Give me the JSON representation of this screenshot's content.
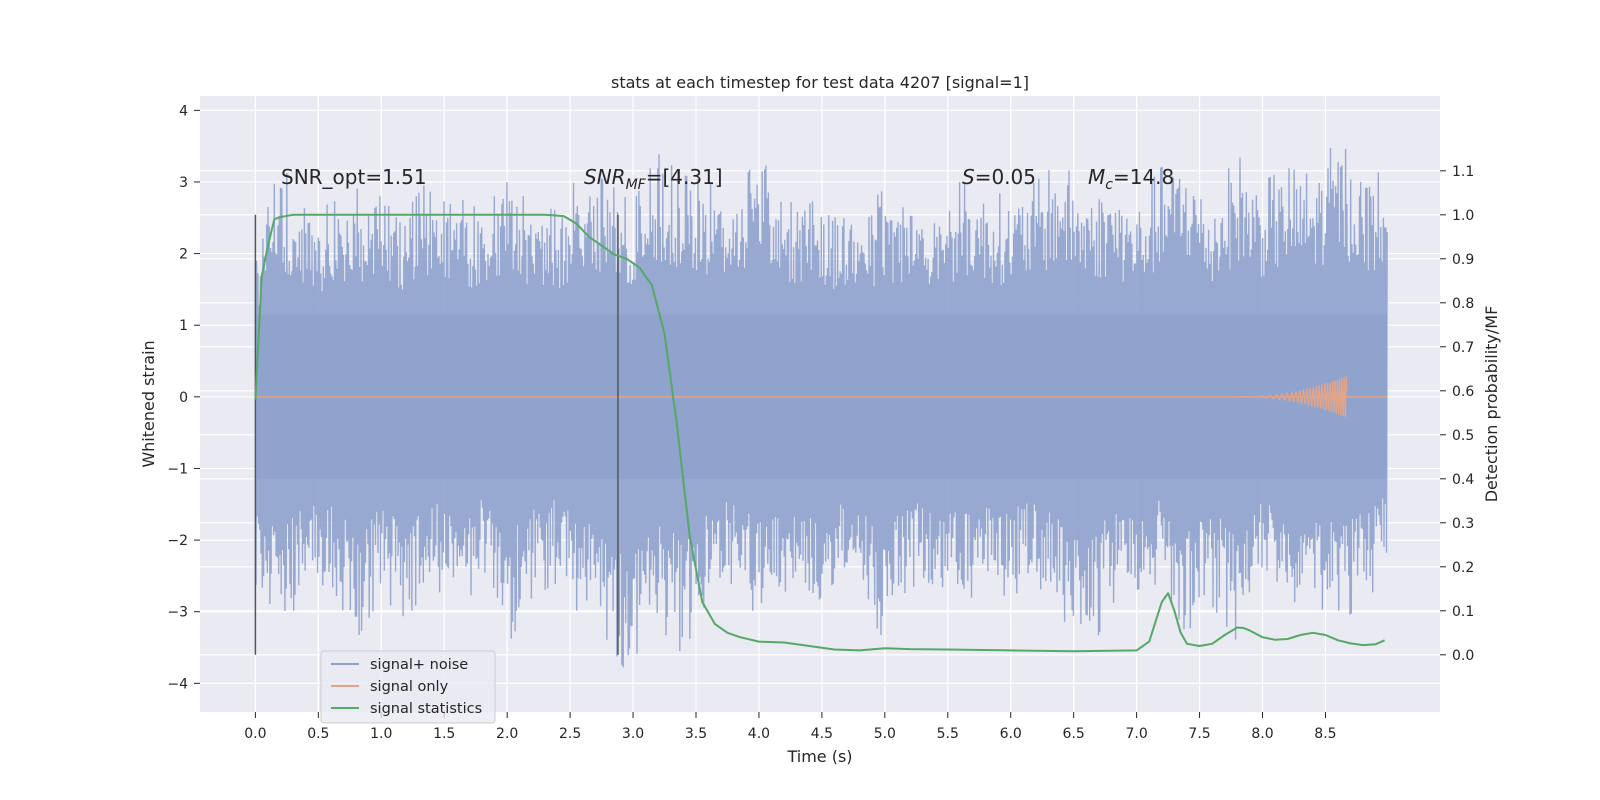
{
  "chart_data": {
    "type": "line",
    "title": "stats at each timestep for test data 4207 [signal=1]",
    "xlabel": "Time (s)",
    "ylabel": "Whitened strain",
    "ylabel_right": "Detection probability/MF",
    "xlim": [
      -0.44,
      9.41
    ],
    "ylim": [
      -4.4,
      4.2
    ],
    "ylim_right": [
      -0.13,
      1.27
    ],
    "xticks": [
      "0.0",
      "0.5",
      "1.0",
      "1.5",
      "2.0",
      "2.5",
      "3.0",
      "3.5",
      "4.0",
      "4.5",
      "5.0",
      "5.5",
      "6.0",
      "6.5",
      "7.0",
      "7.5",
      "8.0",
      "8.5"
    ],
    "yticks_left": [
      "−4",
      "−3",
      "−2",
      "−1",
      "0",
      "1",
      "2",
      "3",
      "4"
    ],
    "yticks_right": [
      "0.0",
      "0.1",
      "0.2",
      "0.3",
      "0.4",
      "0.5",
      "0.6",
      "0.7",
      "0.8",
      "0.9",
      "1.0",
      "1.1"
    ],
    "grid": true,
    "legend_position": "bottom-left",
    "annotations": {
      "snr_opt": "SNR_opt=1.51",
      "snr_mf_main": "SNR",
      "snr_mf_sub": "MF",
      "snr_mf_value": "=[4.31]",
      "s_main": "S",
      "s_value": "=0.05",
      "mc_main": "M",
      "mc_sub": "c",
      "mc_value": "=14.8"
    },
    "vertical_markers_x": [
      0.0,
      2.88
    ],
    "series": [
      {
        "name": "signal+ noise",
        "color": "#8ea2cc",
        "axis": "left",
        "x_range": [
          0.0,
          8.99
        ],
        "envelope_upper": [
          2.0,
          3.3,
          2.6,
          2.7,
          2.9,
          3.0,
          2.6,
          3.1,
          2.8,
          2.6,
          3.0,
          2.7,
          2.6,
          3.2,
          3.0,
          2.7,
          3.4,
          3.1,
          3.0,
          2.8,
          3.8,
          2.6,
          3.0,
          2.7,
          2.6,
          2.9,
          2.8,
          2.7,
          3.0,
          2.9,
          2.8,
          3.0,
          3.3,
          2.9,
          3.0,
          2.7,
          3.2,
          3.4,
          2.7,
          3.4,
          3.0,
          3.2,
          3.1,
          3.6,
          3.2,
          3.1
        ],
        "envelope_lower": [
          -3.0,
          -3.3,
          -2.7,
          -2.6,
          -3.4,
          -2.8,
          -3.1,
          -2.6,
          -3.0,
          -2.6,
          -3.5,
          -2.8,
          -2.6,
          -3.1,
          -3.4,
          -4.0,
          -3.2,
          -3.6,
          -2.8,
          -2.6,
          -3.1,
          -2.9,
          -3.0,
          -2.6,
          -2.8,
          -3.4,
          -2.6,
          -2.9,
          -2.9,
          -2.7,
          -2.8,
          -2.6,
          -3.0,
          -3.8,
          -2.9,
          -2.7,
          -2.6,
          -3.3,
          -2.9,
          -3.4,
          -2.6,
          -2.9,
          -2.8,
          -3.2,
          -2.9,
          -2.5
        ]
      },
      {
        "name": "signal only",
        "color": "#e0a58b",
        "axis": "left",
        "chirp_start_x": 7.8,
        "chirp_end_x": 8.67,
        "max_amplitude": 0.3
      },
      {
        "name": "signal statistics",
        "color": "#55a868",
        "axis": "right",
        "x": [
          0.0,
          0.05,
          0.1,
          0.15,
          0.2,
          0.3,
          0.5,
          1.0,
          1.5,
          2.0,
          2.3,
          2.45,
          2.55,
          2.65,
          2.75,
          2.85,
          2.95,
          3.05,
          3.15,
          3.25,
          3.35,
          3.45,
          3.55,
          3.65,
          3.75,
          3.85,
          4.0,
          4.2,
          4.4,
          4.6,
          4.8,
          5.0,
          5.2,
          5.5,
          6.0,
          6.5,
          7.0,
          7.1,
          7.15,
          7.2,
          7.25,
          7.3,
          7.35,
          7.4,
          7.5,
          7.6,
          7.7,
          7.8,
          7.85,
          7.9,
          8.0,
          8.1,
          8.2,
          8.3,
          8.4,
          8.5,
          8.6,
          8.7,
          8.8,
          8.9,
          8.97
        ],
        "y": [
          0.58,
          0.86,
          0.93,
          0.99,
          0.995,
          1.0,
          1.0,
          1.0,
          1.0,
          1.0,
          1.0,
          0.997,
          0.98,
          0.95,
          0.93,
          0.91,
          0.9,
          0.88,
          0.84,
          0.73,
          0.52,
          0.27,
          0.12,
          0.07,
          0.05,
          0.04,
          0.03,
          0.028,
          0.02,
          0.012,
          0.01,
          0.015,
          0.013,
          0.012,
          0.01,
          0.008,
          0.01,
          0.03,
          0.075,
          0.12,
          0.14,
          0.1,
          0.05,
          0.025,
          0.02,
          0.025,
          0.045,
          0.062,
          0.061,
          0.055,
          0.04,
          0.034,
          0.036,
          0.045,
          0.05,
          0.045,
          0.033,
          0.026,
          0.022,
          0.024,
          0.033
        ]
      }
    ]
  }
}
